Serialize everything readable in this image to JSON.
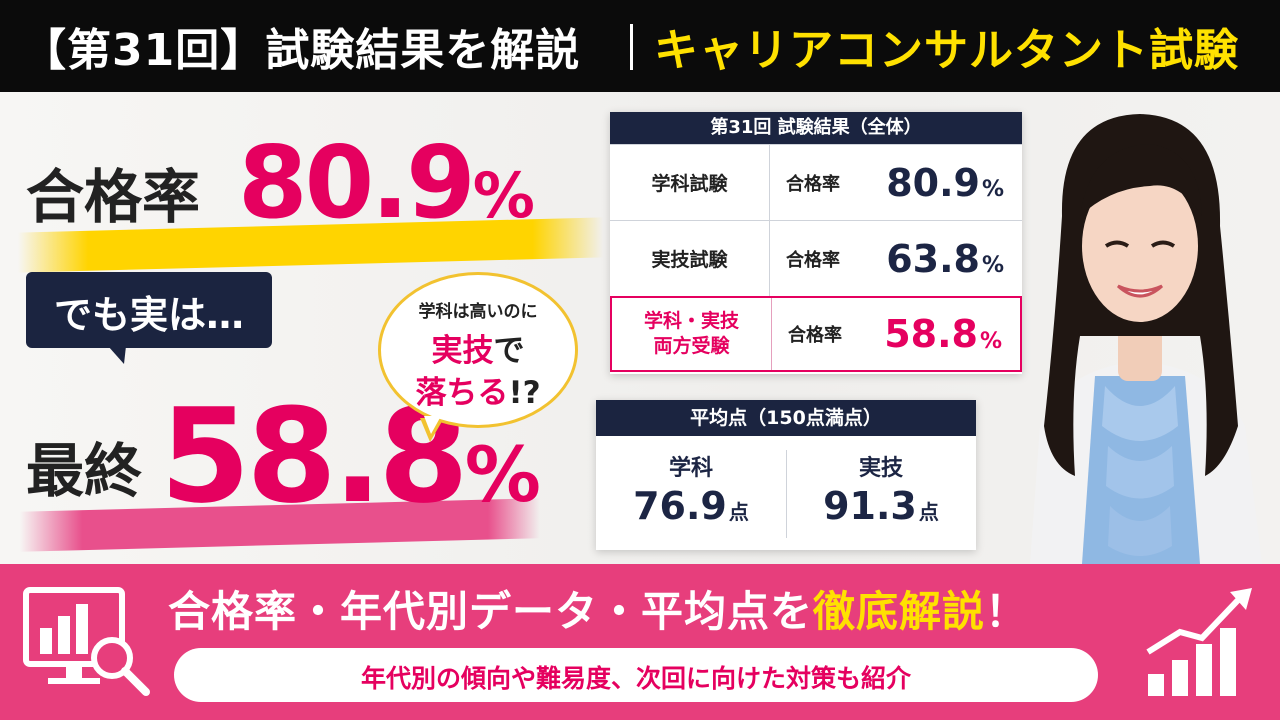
{
  "banner": {
    "left": "【第31回】試験結果を解説",
    "right": "キャリアコンサルタント試験"
  },
  "hero": {
    "pass_label": "合格率",
    "pass_value": "80.9",
    "pass_unit": "%",
    "demo_text": "でも実は…",
    "final_label": "最終",
    "final_value": "58.8",
    "final_unit": "%"
  },
  "bubble": {
    "line1": "学科は高いのに",
    "line2_a": "実技",
    "line2_b": "で",
    "line3_a": "落ちる",
    "line3_b": "!?"
  },
  "results": {
    "title": "第31回 試験結果（全体）",
    "rows": [
      {
        "name": "学科試験",
        "label": "合格率",
        "value": "80.9",
        "unit": "%"
      },
      {
        "name": "実技試験",
        "label": "合格率",
        "value": "63.8",
        "unit": "%"
      },
      {
        "name_1": "学科・実技",
        "name_2": "両方受験",
        "label": "合格率",
        "value": "58.8",
        "unit": "%"
      }
    ]
  },
  "average": {
    "title": "平均点（150点満点）",
    "items": [
      {
        "label": "学科",
        "value": "76.9",
        "unit": "点"
      },
      {
        "label": "実技",
        "value": "91.3",
        "unit": "点"
      }
    ]
  },
  "bottom": {
    "main_a": "合格率・年代別データ・平均点を",
    "main_em": "徹底解説",
    "main_b": "！",
    "sub": "年代別の傾向や難易度、次回に向けた対策も紹介"
  },
  "icons": [
    "chart-monitor-search-icon",
    "growth-bar-chart-icon"
  ],
  "colors": {
    "accent": "#e5005f",
    "navy": "#1b2440",
    "yellow": "#ffe100",
    "bottom_bg": "#e73e7c"
  }
}
